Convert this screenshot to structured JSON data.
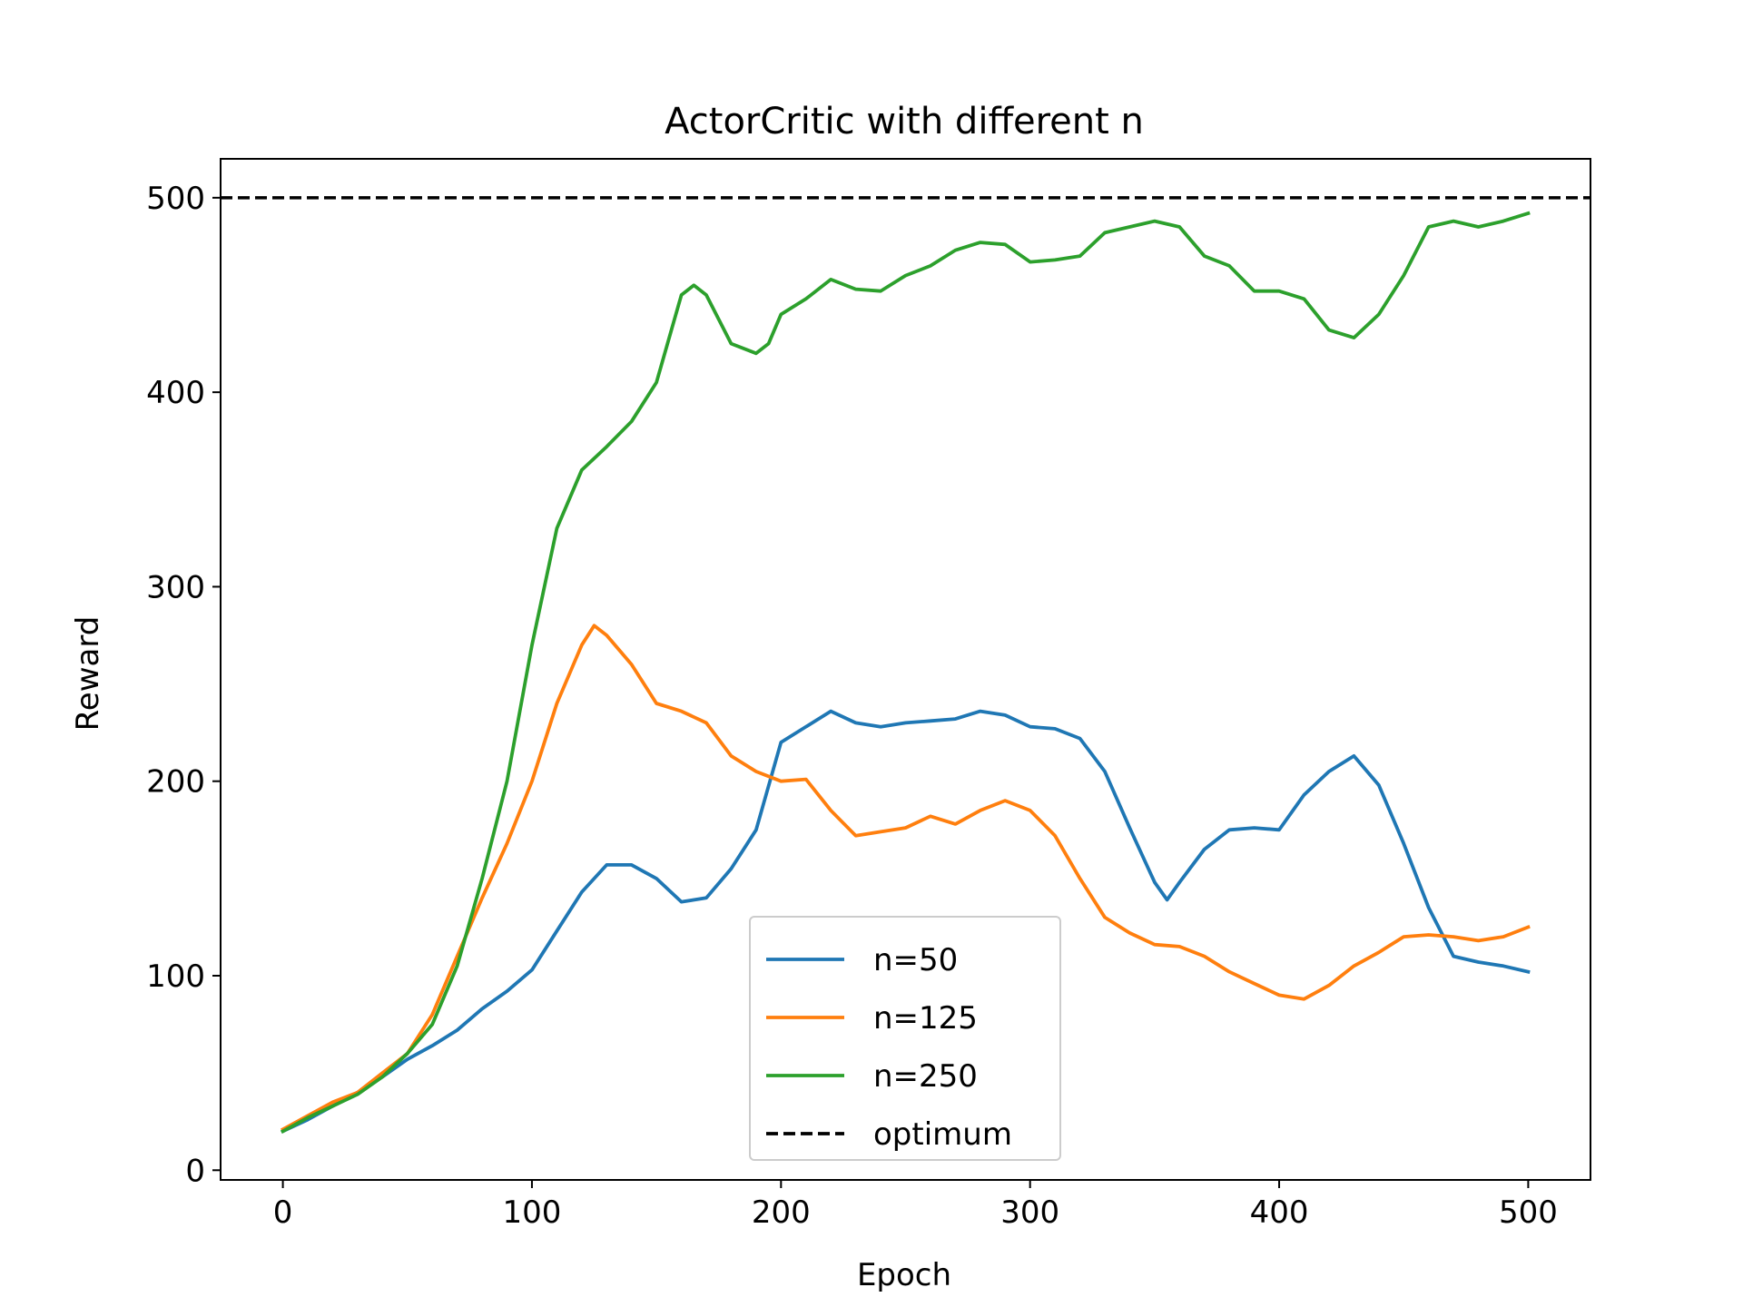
{
  "chart_data": {
    "type": "line",
    "title": "ActorCritic with different n",
    "xlabel": "Epoch",
    "ylabel": "Reward",
    "xlim": [
      -25,
      525
    ],
    "ylim": [
      -5,
      520
    ],
    "xticks": [
      0,
      100,
      200,
      300,
      400,
      500
    ],
    "yticks": [
      0,
      100,
      200,
      300,
      400,
      500
    ],
    "grid": false,
    "legend_position": "lower-center",
    "reference_line": {
      "name": "optimum",
      "y": 500,
      "style": "dashed",
      "color": "#000000"
    },
    "series": [
      {
        "name": "n=50",
        "color": "#1f77b4",
        "x": [
          0,
          10,
          20,
          30,
          40,
          50,
          60,
          70,
          80,
          90,
          100,
          110,
          120,
          130,
          140,
          150,
          160,
          170,
          180,
          190,
          200,
          210,
          220,
          230,
          240,
          250,
          260,
          270,
          280,
          290,
          300,
          310,
          320,
          330,
          340,
          350,
          355,
          360,
          370,
          380,
          390,
          400,
          410,
          420,
          430,
          440,
          450,
          460,
          470,
          480,
          490,
          500
        ],
        "y": [
          20,
          26,
          33,
          40,
          48,
          57,
          64,
          72,
          83,
          92,
          103,
          123,
          143,
          157,
          157,
          150,
          138,
          140,
          155,
          175,
          220,
          228,
          236,
          230,
          228,
          230,
          231,
          232,
          236,
          234,
          228,
          227,
          222,
          205,
          176,
          148,
          139,
          148,
          165,
          175,
          176,
          175,
          193,
          205,
          213,
          198,
          168,
          135,
          110,
          107,
          105,
          102
        ]
      },
      {
        "name": "n=125",
        "color": "#ff7f0e",
        "x": [
          0,
          10,
          20,
          30,
          40,
          50,
          60,
          70,
          80,
          90,
          100,
          110,
          120,
          125,
          130,
          140,
          150,
          160,
          170,
          180,
          190,
          200,
          210,
          220,
          230,
          240,
          250,
          260,
          270,
          280,
          290,
          300,
          310,
          320,
          330,
          340,
          350,
          360,
          370,
          380,
          390,
          400,
          410,
          420,
          430,
          440,
          450,
          460,
          470,
          480,
          490,
          500
        ],
        "y": [
          21,
          28,
          35,
          40,
          50,
          60,
          80,
          110,
          140,
          168,
          200,
          240,
          270,
          280,
          275,
          260,
          240,
          236,
          230,
          213,
          205,
          200,
          201,
          185,
          172,
          174,
          176,
          182,
          178,
          185,
          190,
          185,
          172,
          150,
          130,
          122,
          116,
          115,
          110,
          102,
          96,
          90,
          88,
          95,
          105,
          112,
          120,
          121,
          120,
          118,
          120,
          125
        ]
      },
      {
        "name": "n=250",
        "color": "#2ca02c",
        "x": [
          0,
          10,
          20,
          30,
          40,
          50,
          60,
          70,
          80,
          90,
          100,
          110,
          120,
          130,
          140,
          150,
          160,
          165,
          170,
          180,
          190,
          195,
          200,
          210,
          220,
          230,
          240,
          250,
          260,
          270,
          280,
          290,
          300,
          310,
          320,
          330,
          340,
          350,
          360,
          370,
          380,
          390,
          400,
          410,
          420,
          430,
          440,
          450,
          460,
          470,
          480,
          490,
          500
        ],
        "y": [
          20,
          27,
          33,
          39,
          48,
          60,
          75,
          105,
          150,
          200,
          270,
          330,
          360,
          372,
          385,
          405,
          450,
          455,
          450,
          425,
          420,
          425,
          440,
          448,
          458,
          453,
          452,
          460,
          465,
          473,
          477,
          476,
          467,
          468,
          470,
          482,
          485,
          488,
          485,
          470,
          465,
          452,
          452,
          448,
          432,
          428,
          440,
          460,
          485,
          488,
          485,
          488,
          492
        ]
      }
    ]
  }
}
